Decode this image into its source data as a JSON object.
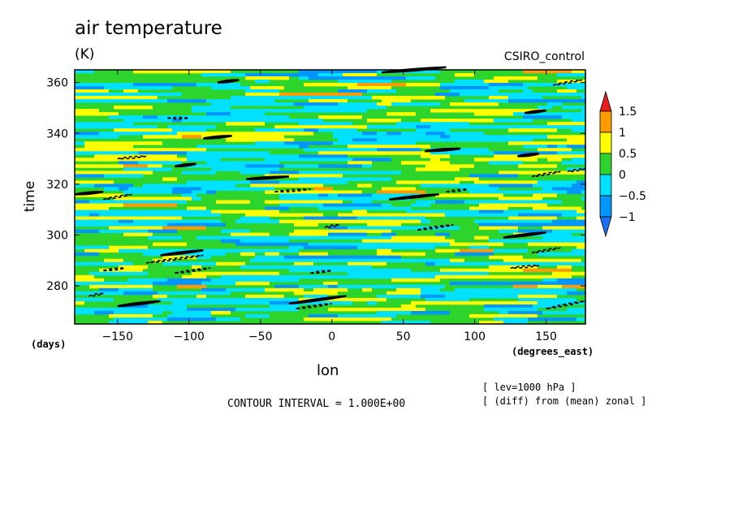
{
  "chart_data": {
    "type": "heatmap",
    "title": "air temperature",
    "units": "(K)",
    "model": "CSIRO_control",
    "xlabel": "lon",
    "ylabel": "time",
    "x_unit": "(degrees_east)",
    "y_unit": "(days)",
    "xlim": [
      -180,
      177.5
    ],
    "ylim": [
      265,
      365
    ],
    "x_ticks": [
      -150,
      -100,
      -50,
      0,
      50,
      100,
      150
    ],
    "x_tick_labels": [
      "−150",
      "−100",
      "−50",
      "0",
      "50",
      "100",
      "150"
    ],
    "y_ticks": [
      280,
      300,
      320,
      340,
      360
    ],
    "y_tick_labels": [
      "280",
      "300",
      "320",
      "340",
      "360"
    ],
    "colorbar": {
      "levels": [
        -1,
        -0.5,
        0,
        0.5,
        1,
        1.5
      ],
      "level_labels": [
        "−1",
        "−0.5",
        "0",
        "0.5",
        "1",
        "1.5"
      ],
      "colors": [
        "#1e6ff0",
        "#0096ff",
        "#00e0ff",
        "#2cd42c",
        "#ffff00",
        "#ff9a00",
        "#e61e1e"
      ]
    },
    "contour_interval_text": "CONTOUR INTERVAL = 1.000E+00",
    "notes": [
      "[ lev=1000 hPa ]",
      "[ (diff) from (mean) zonal ]"
    ],
    "grid": false
  }
}
